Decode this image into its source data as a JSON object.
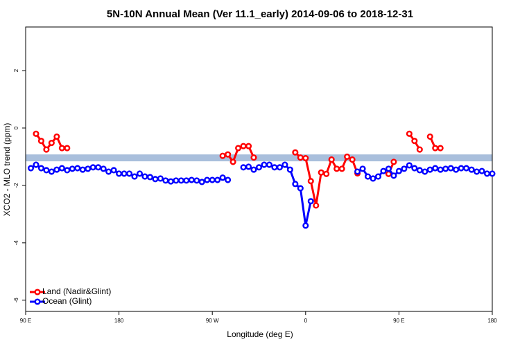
{
  "chart_data": {
    "type": "line",
    "title": "5N-10N Annual Mean (Ver 11.1_early)   2014-09-06 to 2018-12-31",
    "x_label": "Longitude (deg E)",
    "y_label": "XCO2 - MLO trend (ppm)",
    "x": [
      95,
      100,
      105,
      110,
      115,
      120,
      125,
      130,
      135,
      140,
      145,
      150,
      155,
      160,
      165,
      170,
      175,
      180,
      185,
      190,
      195,
      200,
      205,
      210,
      215,
      220,
      225,
      230,
      235,
      240,
      245,
      250,
      255,
      260,
      265,
      270,
      275,
      280,
      285,
      290,
      295,
      300,
      305,
      310,
      315,
      320,
      325,
      330,
      335,
      340,
      345,
      350,
      355,
      360,
      365,
      370,
      375,
      380,
      385,
      390,
      395,
      400,
      405,
      410,
      415,
      420,
      425,
      430,
      435,
      440,
      445,
      450,
      455,
      460,
      465,
      470,
      475,
      480,
      485,
      490,
      495,
      500,
      505,
      510,
      515,
      520,
      525,
      530,
      535,
      540
    ],
    "series": [
      {
        "name": "Land (Nadir&Glint)",
        "color": "#ff0000",
        "values": [
          null,
          -0.2,
          -0.45,
          -0.75,
          -0.52,
          -0.3,
          -0.7,
          -0.7,
          null,
          null,
          null,
          null,
          null,
          null,
          null,
          null,
          null,
          null,
          null,
          null,
          null,
          null,
          null,
          null,
          null,
          null,
          null,
          null,
          null,
          null,
          null,
          null,
          null,
          null,
          null,
          null,
          null,
          -0.97,
          -0.92,
          -1.18,
          -0.7,
          -0.63,
          -0.63,
          -1.03,
          null,
          null,
          null,
          null,
          null,
          null,
          null,
          -0.85,
          -1.03,
          -1.05,
          -1.85,
          -2.7,
          -1.55,
          -1.6,
          -1.1,
          -1.42,
          -1.42,
          -1.0,
          -1.1,
          -1.58,
          null,
          null,
          null,
          null,
          null,
          -1.6,
          -1.18,
          null,
          null,
          -0.2,
          -0.45,
          -0.75,
          null,
          -0.3,
          -0.7,
          -0.7,
          null,
          null,
          null,
          null,
          null,
          null,
          null,
          null,
          null,
          null
        ]
      },
      {
        "name": "Ocean (Glint)",
        "color": "#0000ff",
        "values": [
          -1.4,
          -1.28,
          -1.4,
          -1.47,
          -1.52,
          -1.45,
          -1.4,
          -1.47,
          -1.42,
          -1.4,
          -1.45,
          -1.42,
          -1.37,
          -1.37,
          -1.42,
          -1.52,
          -1.47,
          -1.59,
          -1.59,
          -1.59,
          -1.69,
          -1.59,
          -1.69,
          -1.71,
          -1.78,
          -1.76,
          -1.83,
          -1.86,
          -1.83,
          -1.83,
          -1.83,
          -1.81,
          -1.83,
          -1.88,
          -1.81,
          -1.81,
          -1.81,
          -1.73,
          -1.81,
          null,
          null,
          -1.37,
          -1.35,
          -1.45,
          -1.37,
          -1.28,
          -1.28,
          -1.37,
          -1.37,
          -1.28,
          -1.45,
          -1.95,
          -2.1,
          -3.4,
          -2.55,
          null,
          null,
          null,
          null,
          null,
          null,
          null,
          null,
          -1.52,
          -1.42,
          -1.69,
          -1.76,
          -1.69,
          -1.5,
          -1.42,
          -1.66,
          -1.5,
          -1.42,
          -1.3,
          -1.4,
          -1.47,
          -1.52,
          -1.45,
          -1.4,
          -1.45,
          -1.42,
          -1.4,
          -1.45,
          -1.4,
          -1.4,
          -1.45,
          -1.52,
          -1.5,
          -1.59,
          -1.59
        ]
      }
    ],
    "reference_band": [
      -1.16,
      -0.92
    ],
    "band_color": "#a9bfdc",
    "xlim": [
      90,
      540
    ],
    "xticks": [
      {
        "value": 90,
        "label": "90 E"
      },
      180,
      {
        "value": 270,
        "label": "90 W"
      },
      {
        "value": 360,
        "label": "0"
      },
      {
        "value": 450,
        "label": "90 E"
      },
      {
        "value": 540,
        "label": "180"
      }
    ],
    "ylim": [
      -6.39,
      3.52
    ],
    "yticks": [
      -6,
      -4,
      -2,
      0,
      2
    ],
    "legend": "bottom-left"
  }
}
